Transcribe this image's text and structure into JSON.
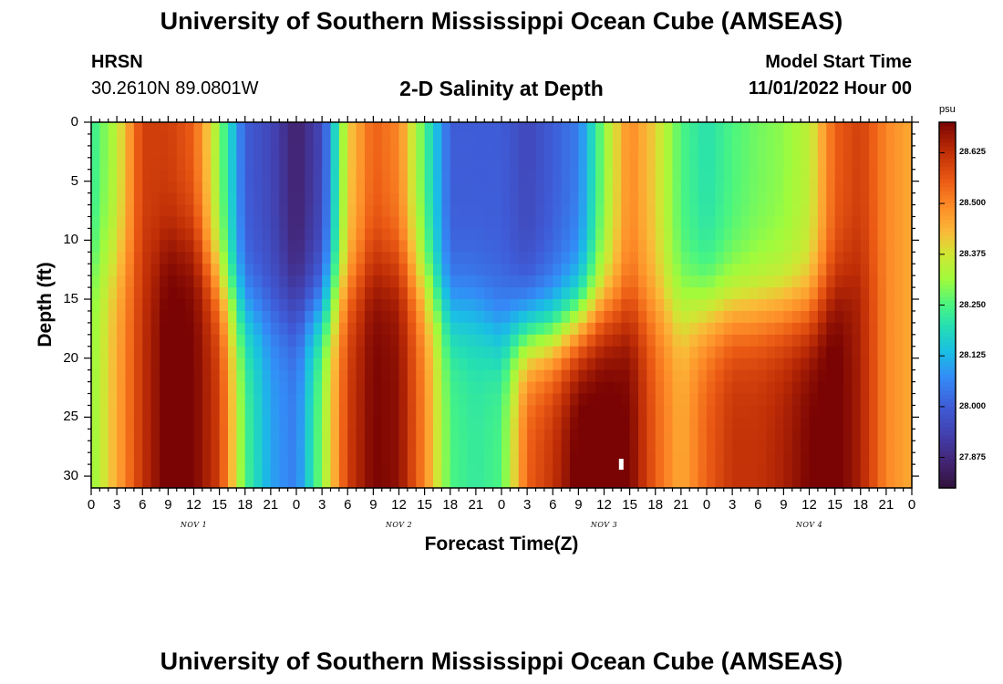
{
  "header": {
    "title": "University of Southern Mississippi Ocean Cube (AMSEAS)",
    "station": "HRSN",
    "coords": "30.2610N  89.0801W",
    "subtitle": "2-D Salinity at Depth",
    "start_label": "Model Start Time",
    "start_value": "11/01/2022 Hour 00",
    "footer_title": "University of Southern Mississippi Ocean Cube (AMSEAS)"
  },
  "chart_data": {
    "type": "heatmap",
    "title": "2-D Salinity at Depth",
    "xlabel": "Forecast Time(Z)",
    "ylabel": "Depth (ft)",
    "x_range_hours": [
      0,
      96
    ],
    "y_range_ft": [
      0,
      31
    ],
    "y_ticks": [
      0,
      5,
      10,
      15,
      20,
      25,
      30
    ],
    "x_tick_labels": [
      "0",
      "3",
      "6",
      "9",
      "12",
      "15",
      "18",
      "21",
      "0",
      "3",
      "6",
      "9",
      "12",
      "15",
      "18",
      "21",
      "0",
      "3",
      "6",
      "9",
      "12",
      "15",
      "18",
      "21",
      "0",
      "3",
      "6",
      "9",
      "12",
      "15",
      "18",
      "21",
      "0"
    ],
    "day_labels": [
      {
        "text": "NOV 1",
        "hour": 12
      },
      {
        "text": "NOV 2",
        "hour": 36
      },
      {
        "text": "NOV 3",
        "hour": 60
      },
      {
        "text": "NOV 4",
        "hour": 84
      }
    ],
    "colorbar": {
      "unit": "psu",
      "min": 27.8,
      "max": 28.7,
      "tick_labels": [
        "28.625",
        "28.500",
        "28.375",
        "28.250",
        "28.125",
        "28.000",
        "27.875"
      ],
      "tick_values": [
        28.625,
        28.5,
        28.375,
        28.25,
        28.125,
        28.0,
        27.875
      ]
    },
    "field_keyframes": [
      {
        "hour": 0,
        "surface": 28.22,
        "deep": 28.3,
        "mid_depth": 12
      },
      {
        "hour": 3,
        "surface": 28.35,
        "deep": 28.45,
        "mid_depth": 12
      },
      {
        "hour": 6,
        "surface": 28.6,
        "deep": 28.62,
        "mid_depth": 12
      },
      {
        "hour": 9,
        "surface": 28.6,
        "deep": 28.72,
        "mid_depth": 10
      },
      {
        "hour": 12,
        "surface": 28.55,
        "deep": 28.7,
        "mid_depth": 10
      },
      {
        "hour": 15,
        "surface": 28.3,
        "deep": 28.6,
        "mid_depth": 14
      },
      {
        "hour": 18,
        "surface": 28.0,
        "deep": 28.25,
        "mid_depth": 16
      },
      {
        "hour": 21,
        "surface": 27.95,
        "deep": 28.1,
        "mid_depth": 16
      },
      {
        "hour": 24,
        "surface": 27.85,
        "deep": 28.05,
        "mid_depth": 16
      },
      {
        "hour": 27,
        "surface": 27.95,
        "deep": 28.3,
        "mid_depth": 16
      },
      {
        "hour": 30,
        "surface": 28.4,
        "deep": 28.6,
        "mid_depth": 14
      },
      {
        "hour": 33,
        "surface": 28.55,
        "deep": 28.7,
        "mid_depth": 12
      },
      {
        "hour": 36,
        "surface": 28.5,
        "deep": 28.68,
        "mid_depth": 12
      },
      {
        "hour": 39,
        "surface": 28.25,
        "deep": 28.5,
        "mid_depth": 14
      },
      {
        "hour": 42,
        "surface": 28.0,
        "deep": 28.25,
        "mid_depth": 16
      },
      {
        "hour": 45,
        "surface": 28.0,
        "deep": 28.22,
        "mid_depth": 16
      },
      {
        "hour": 48,
        "surface": 28.0,
        "deep": 28.25,
        "mid_depth": 18
      },
      {
        "hour": 51,
        "surface": 27.95,
        "deep": 28.55,
        "mid_depth": 18
      },
      {
        "hour": 54,
        "surface": 28.0,
        "deep": 28.62,
        "mid_depth": 18
      },
      {
        "hour": 57,
        "surface": 28.05,
        "deep": 28.72,
        "mid_depth": 17
      },
      {
        "hour": 60,
        "surface": 28.3,
        "deep": 28.72,
        "mid_depth": 16
      },
      {
        "hour": 63,
        "surface": 28.5,
        "deep": 28.7,
        "mid_depth": 16
      },
      {
        "hour": 66,
        "surface": 28.4,
        "deep": 28.55,
        "mid_depth": 16
      },
      {
        "hour": 69,
        "surface": 28.25,
        "deep": 28.45,
        "mid_depth": 16
      },
      {
        "hour": 72,
        "surface": 28.2,
        "deep": 28.55,
        "mid_depth": 16
      },
      {
        "hour": 75,
        "surface": 28.25,
        "deep": 28.62,
        "mid_depth": 16
      },
      {
        "hour": 78,
        "surface": 28.28,
        "deep": 28.62,
        "mid_depth": 16
      },
      {
        "hour": 81,
        "surface": 28.3,
        "deep": 28.65,
        "mid_depth": 16
      },
      {
        "hour": 84,
        "surface": 28.35,
        "deep": 28.7,
        "mid_depth": 16
      },
      {
        "hour": 87,
        "surface": 28.55,
        "deep": 28.72,
        "mid_depth": 14
      },
      {
        "hour": 90,
        "surface": 28.6,
        "deep": 28.65,
        "mid_depth": 12
      },
      {
        "hour": 93,
        "surface": 28.5,
        "deep": 28.5,
        "mid_depth": 12
      },
      {
        "hour": 96,
        "surface": 28.45,
        "deep": 28.45,
        "mid_depth": 12
      }
    ],
    "marker": {
      "hour": 62,
      "depth_ft": 29
    }
  }
}
